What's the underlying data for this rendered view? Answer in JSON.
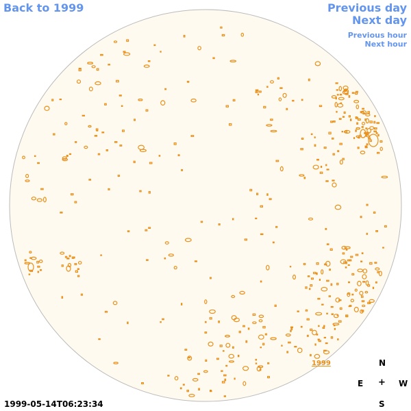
{
  "nav": {
    "back": "Back to 1999",
    "previous_day": "Previous day",
    "next_day": "Next day",
    "previous_hour": "Previous hour",
    "next_hour": "Next hour"
  },
  "compass": {
    "n": "N",
    "e": "E",
    "center": "+",
    "w": "W",
    "s": "S"
  },
  "timestamp": "1999-05-14T06:23:34",
  "year_link": "1999",
  "colors": {
    "nav": "#6495ed",
    "disk_fill": "#fffaf0",
    "disk_stroke": "#bbbbbb",
    "contour": "#e8901a"
  }
}
